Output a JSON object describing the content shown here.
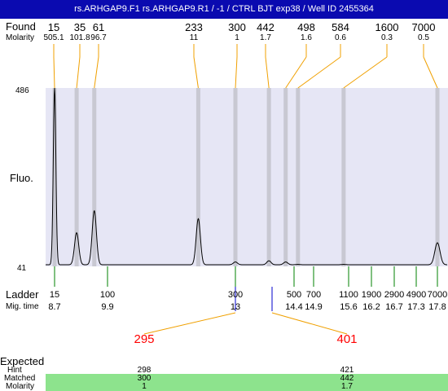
{
  "title": "rs.ARHGAP9.F1  rs.ARHGAP9.R1 / -1 / CTRL BJT   exp38 / Well ID 2455364",
  "labels": {
    "found": "Found",
    "molarity": "Molarity",
    "fluo": "Fluo.",
    "ladder": "Ladder",
    "mig_time": "Mig. time",
    "expected": "Expected",
    "hint": "Hint",
    "matched": "Matched",
    "molarity_bottom": "Molarity",
    "ymax": "486",
    "ymin": "41"
  },
  "found_peaks": [
    {
      "size": "15",
      "molarity": "505.1"
    },
    {
      "size": "35",
      "molarity": "101.8"
    },
    {
      "size": "61",
      "molarity": "96.7"
    },
    {
      "size": "233",
      "molarity": "11"
    },
    {
      "size": "300",
      "molarity": "1"
    },
    {
      "size": "442",
      "molarity": "1.7"
    },
    {
      "size": "498",
      "molarity": "1.6"
    },
    {
      "size": "584",
      "molarity": "0.6"
    },
    {
      "size": "1600",
      "molarity": "0.3"
    },
    {
      "size": "7000",
      "molarity": "0.5"
    }
  ],
  "ladder": [
    {
      "size": "15",
      "time": "8.7"
    },
    {
      "size": "100",
      "time": "9.9"
    },
    {
      "size": "300",
      "time": "13"
    },
    {
      "size": "500",
      "time": "14.4"
    },
    {
      "size": "700",
      "time": "14.9"
    },
    {
      "size": "1100",
      "time": "15.6"
    },
    {
      "size": "1900",
      "time": "16.2"
    },
    {
      "size": "2900",
      "time": "16.7"
    },
    {
      "size": "4900",
      "time": "17.3"
    },
    {
      "size": "7000",
      "time": "17.8"
    }
  ],
  "expected": [
    {
      "value": "295",
      "hint": "298",
      "matched": "300",
      "molarity": "1"
    },
    {
      "value": "401",
      "hint": "421",
      "matched": "442",
      "molarity": "1.7"
    }
  ],
  "colors": {
    "title_bg": "#0a0ab0",
    "plot_bg": "#e6e6f5",
    "band": "#c8c8d2",
    "found_line": "#f0a000",
    "ladder_line": "#008000",
    "expected_line": "#0000cc",
    "expected_text": "#ff0000",
    "matched_bg": "#8de38d"
  },
  "chart_data": {
    "type": "line",
    "title": "",
    "xlabel": "",
    "ylabel": "Fluo.",
    "ylim": [
      41,
      486
    ],
    "peaks_mig_time": [
      8.7,
      9.2,
      9.6,
      12.1,
      13,
      13.8,
      14.2,
      14.5,
      15.5,
      17.8
    ],
    "peak_heights": [
      486,
      125,
      180,
      160,
      52,
      55,
      52,
      46,
      46,
      100
    ]
  }
}
